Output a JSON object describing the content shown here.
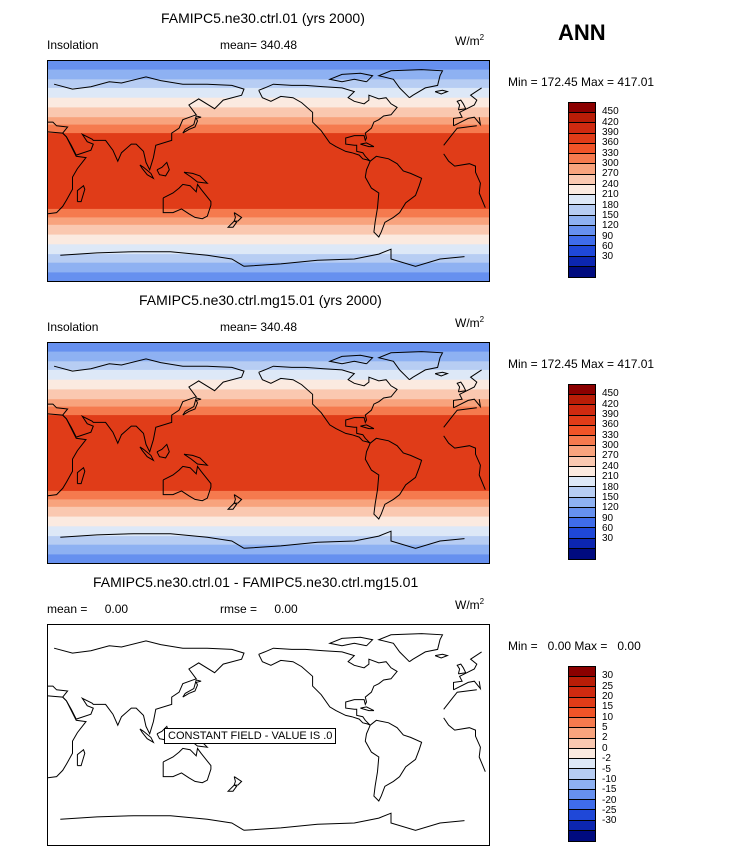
{
  "season": "ANN",
  "coast_color": "#000000",
  "panels": [
    {
      "title": "FAMIPC5.ne30.ctrl.01 (yrs 2000)",
      "left_label": "Insolation",
      "mean_label": "mean=",
      "mean_value": "340.48",
      "unit_base": "W/m",
      "unit_exp": "2",
      "minmax": "Min = 172.45 Max = 417.01",
      "colorbar_labels": [
        "450",
        "420",
        "390",
        "360",
        "330",
        "300",
        "270",
        "240",
        "210",
        "180",
        "150",
        "120",
        "90",
        "60",
        "30"
      ],
      "colorbar_colors": [
        "#8b0000",
        "#b91d07",
        "#cf2a10",
        "#e03c18",
        "#f05428",
        "#f57a4e",
        "#f8a37d",
        "#fac8b0",
        "#fbeae0",
        "#dde8f7",
        "#b7cdf3",
        "#8eb1f2",
        "#6690ef",
        "#3f6cea",
        "#1f48d8",
        "#0c26b0",
        "#000b7f"
      ],
      "field": {
        "type": "insolation",
        "band_edges_lat": [
          90,
          83,
          75,
          68,
          60,
          52,
          44,
          38,
          31,
          -31,
          -38,
          -44,
          -52,
          -60,
          -68,
          -75,
          -83,
          -90
        ],
        "band_colors": [
          "#6690ef",
          "#8eb1f2",
          "#b7cdf3",
          "#dde8f7",
          "#fbeae0",
          "#fac8b0",
          "#f8a37d",
          "#f57a4e",
          "#e03c18",
          "#f57a4e",
          "#f8a37d",
          "#fac8b0",
          "#fbeae0",
          "#dde8f7",
          "#b7cdf3",
          "#8eb1f2",
          "#6690ef"
        ]
      }
    },
    {
      "title": "FAMIPC5.ne30.ctrl.mg15.01 (yrs 2000)",
      "left_label": "Insolation",
      "mean_label": "mean=",
      "mean_value": "340.48",
      "unit_base": "W/m",
      "unit_exp": "2",
      "minmax": "Min = 172.45 Max = 417.01",
      "colorbar_labels": [
        "450",
        "420",
        "390",
        "360",
        "330",
        "300",
        "270",
        "240",
        "210",
        "180",
        "150",
        "120",
        "90",
        "60",
        "30"
      ],
      "colorbar_colors": [
        "#8b0000",
        "#b91d07",
        "#cf2a10",
        "#e03c18",
        "#f05428",
        "#f57a4e",
        "#f8a37d",
        "#fac8b0",
        "#fbeae0",
        "#dde8f7",
        "#b7cdf3",
        "#8eb1f2",
        "#6690ef",
        "#3f6cea",
        "#1f48d8",
        "#0c26b0",
        "#000b7f"
      ],
      "field": {
        "type": "insolation",
        "band_edges_lat": [
          90,
          83,
          75,
          68,
          60,
          52,
          44,
          38,
          31,
          -31,
          -38,
          -44,
          -52,
          -60,
          -68,
          -75,
          -83,
          -90
        ],
        "band_colors": [
          "#6690ef",
          "#8eb1f2",
          "#b7cdf3",
          "#dde8f7",
          "#fbeae0",
          "#fac8b0",
          "#f8a37d",
          "#f57a4e",
          "#e03c18",
          "#f57a4e",
          "#f8a37d",
          "#fac8b0",
          "#fbeae0",
          "#dde8f7",
          "#b7cdf3",
          "#8eb1f2",
          "#6690ef"
        ]
      }
    },
    {
      "title": "FAMIPC5.ne30.ctrl.01 - FAMIPC5.ne30.ctrl.mg15.01",
      "left_label": "mean =",
      "left_value": "0.00",
      "mean_label": "rmse =",
      "mean_value": "0.00",
      "unit_base": "W/m",
      "unit_exp": "2",
      "minmax": "Min =   0.00 Max =   0.00",
      "constant_text": "CONSTANT FIELD - VALUE IS .0",
      "colorbar_labels": [
        "30",
        "25",
        "20",
        "15",
        "10",
        "5",
        "2",
        "0",
        "-2",
        "-5",
        "-10",
        "-15",
        "-20",
        "-25",
        "-30"
      ],
      "colorbar_colors": [
        "#8b0000",
        "#b91d07",
        "#cf2a10",
        "#e03c18",
        "#f05428",
        "#f57a4e",
        "#f8a37d",
        "#fac8b0",
        "#fbeae0",
        "#dde8f7",
        "#b7cdf3",
        "#8eb1f2",
        "#6690ef",
        "#3f6cea",
        "#1f48d8",
        "#0c26b0",
        "#000b7f"
      ],
      "field": {
        "type": "constant",
        "fill": "#ffffff"
      }
    }
  ]
}
